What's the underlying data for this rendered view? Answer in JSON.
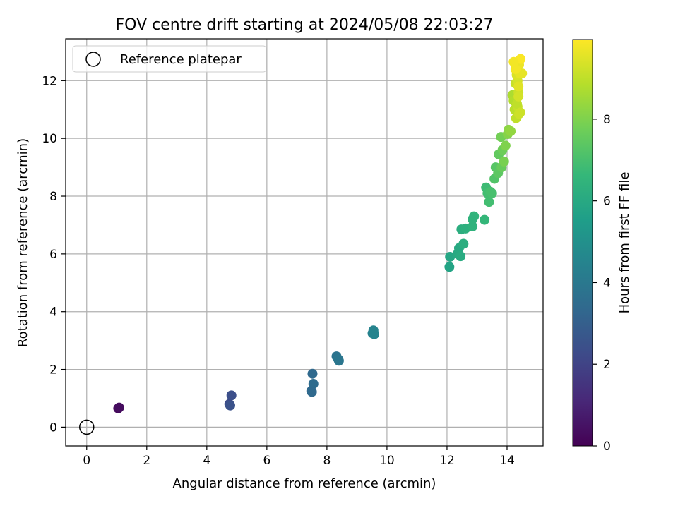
{
  "chart_data": {
    "type": "scatter",
    "title": "FOV centre drift starting at 2024/05/08 22:03:27",
    "xlabel": "Angular distance from reference (arcmin)",
    "ylabel": "Rotation from reference (arcmin)",
    "xlim": [
      -0.7,
      15.2
    ],
    "ylim": [
      -0.65,
      13.45
    ],
    "xticks": [
      0,
      2,
      4,
      6,
      8,
      10,
      12,
      14
    ],
    "yticks": [
      0,
      2,
      4,
      6,
      8,
      10,
      12
    ],
    "grid": true,
    "legend": {
      "placement": "top-left",
      "entries": [
        "Reference platepar"
      ]
    },
    "reference_point": {
      "name": "Reference platepar",
      "x": 0,
      "y": 0,
      "marker": "hollow-circle"
    },
    "colorbar": {
      "label": "Hours from first FF file",
      "colormap": "viridis",
      "range": [
        0,
        9.95
      ],
      "ticks": [
        0,
        2,
        4,
        6,
        8
      ]
    },
    "series": [
      {
        "marker": "filled-circle",
        "x": [
          1.05,
          1.08,
          4.75,
          4.82,
          4.78,
          7.48,
          7.52,
          7.55,
          7.5,
          8.32,
          8.4,
          8.38,
          9.52,
          9.55,
          9.58,
          12.08,
          12.1,
          12.35,
          12.4,
          12.45,
          12.48,
          12.55,
          12.62,
          12.85,
          12.9,
          12.85,
          13.25,
          13.3,
          13.35,
          13.4,
          13.45,
          13.5,
          13.58,
          13.62,
          13.7,
          13.72,
          13.8,
          13.85,
          13.82,
          13.9,
          13.95,
          14.02,
          14.05,
          14.12,
          14.18,
          14.22,
          14.25,
          14.3,
          14.28,
          14.35,
          14.38,
          14.32,
          14.4,
          14.45,
          14.42,
          14.38,
          14.35,
          14.5,
          14.4,
          14.33,
          14.28,
          14.22,
          14.38,
          14.44
        ],
        "y": [
          0.65,
          0.68,
          0.8,
          1.1,
          0.75,
          1.25,
          1.85,
          1.5,
          1.22,
          2.45,
          2.3,
          2.35,
          3.25,
          3.35,
          3.22,
          5.55,
          5.9,
          6.0,
          6.2,
          5.92,
          6.85,
          6.35,
          6.88,
          6.95,
          7.3,
          7.2,
          7.18,
          8.3,
          8.1,
          7.8,
          8.15,
          8.1,
          8.6,
          9.0,
          8.8,
          9.45,
          10.05,
          9.6,
          9.0,
          9.2,
          9.75,
          10.15,
          10.3,
          10.25,
          11.5,
          11.3,
          11.0,
          10.7,
          11.9,
          12.0,
          11.6,
          12.2,
          12.55,
          12.75,
          12.25,
          11.8,
          11.1,
          12.25,
          10.85,
          11.2,
          12.4,
          12.65,
          11.45,
          10.9
        ],
        "hours": [
          0.2,
          0.3,
          2.3,
          2.4,
          2.5,
          3.3,
          3.4,
          3.5,
          3.4,
          3.8,
          3.9,
          3.9,
          4.4,
          4.5,
          4.5,
          5.8,
          5.9,
          6.0,
          6.0,
          6.1,
          6.2,
          6.2,
          6.3,
          6.4,
          6.5,
          6.4,
          6.6,
          6.8,
          6.9,
          6.9,
          7.0,
          7.0,
          7.2,
          7.3,
          7.4,
          7.5,
          7.8,
          7.7,
          7.6,
          7.9,
          8.0,
          8.1,
          8.2,
          8.3,
          8.7,
          8.8,
          8.9,
          9.0,
          9.1,
          9.3,
          9.2,
          9.4,
          9.7,
          9.9,
          9.6,
          9.5,
          9.1,
          9.6,
          9.2,
          9.0,
          9.8,
          9.8,
          9.3,
          9.2
        ]
      }
    ]
  }
}
